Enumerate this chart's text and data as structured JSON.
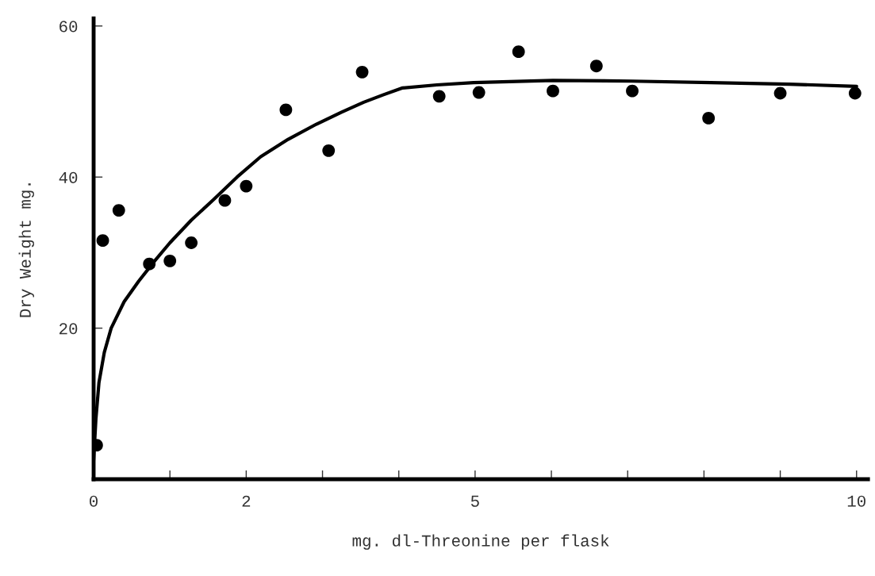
{
  "chart_data": {
    "type": "scatter",
    "xlabel": "mg. dl-Threonine per flask",
    "ylabel": "Dry Weight mg.",
    "xlim": [
      0,
      10.15
    ],
    "ylim": [
      0,
      61
    ],
    "xticks": [
      0,
      {
        "value": 1,
        "label": null
      },
      2,
      {
        "value": 3,
        "label": null
      },
      {
        "value": 4,
        "label": null
      },
      5,
      {
        "value": 6,
        "label": null
      },
      {
        "value": 7,
        "label": null
      },
      {
        "value": 8,
        "label": null
      },
      {
        "value": 9,
        "label": null
      },
      10
    ],
    "yticks": [
      20,
      40,
      60
    ],
    "grid": false,
    "series": [
      {
        "color": "#000000",
        "marker": "circle",
        "x": [
          0.04,
          0.12,
          0.33,
          0.73,
          1.0,
          1.28,
          1.72,
          2.0,
          2.52,
          3.08,
          3.52,
          4.53,
          5.05,
          5.57,
          6.02,
          6.59,
          7.06,
          8.06,
          9.0,
          9.98
        ],
        "values": [
          4.5,
          31.6,
          35.6,
          28.5,
          28.9,
          31.3,
          36.9,
          38.8,
          48.9,
          43.5,
          53.9,
          50.7,
          51.2,
          56.6,
          51.4,
          54.7,
          51.4,
          47.8,
          51.1,
          51.1
        ]
      },
      {
        "type": "line",
        "color": "#000000",
        "marker": "none",
        "line_style": "solid",
        "x": [
          0,
          0.03,
          0.07,
          0.14,
          0.23,
          0.4,
          0.59,
          0.8,
          1.0,
          1.28,
          1.57,
          1.88,
          2.19,
          2.55,
          2.92,
          3.25,
          3.54,
          3.8,
          4.05,
          4.5,
          4.98,
          6.02,
          7.05,
          8.09,
          9.12,
          10.0
        ],
        "values": [
          2.5,
          8,
          12.8,
          16.8,
          20,
          23.5,
          26.2,
          28.9,
          31.3,
          34.3,
          37,
          40,
          42.7,
          45,
          47,
          48.6,
          49.9,
          50.9,
          51.8,
          52.2,
          52.5,
          52.8,
          52.7,
          52.5,
          52.3,
          52.0
        ]
      }
    ]
  }
}
